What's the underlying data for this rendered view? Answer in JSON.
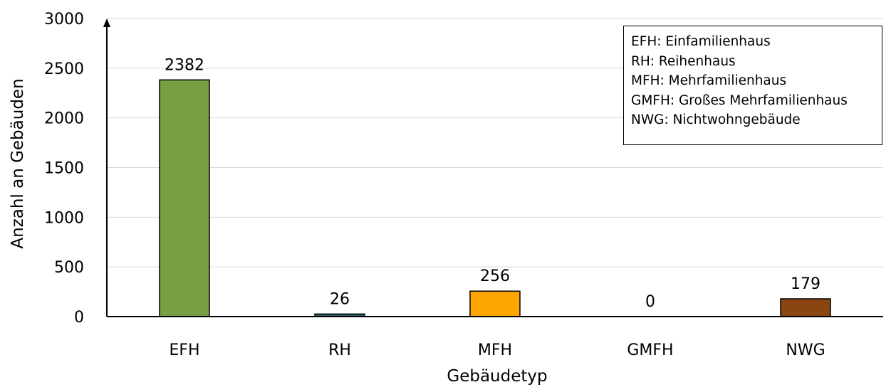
{
  "chart_data": {
    "type": "bar",
    "categories": [
      "EFH",
      "RH",
      "MFH",
      "GMFH",
      "NWG"
    ],
    "values": [
      2382,
      26,
      256,
      0,
      179
    ],
    "data_labels": [
      "2382",
      "26",
      "256",
      "0",
      "179"
    ],
    "colors": [
      "#77a043",
      "#2b5a6a",
      "#ffa500",
      "#7f9e3a",
      "#8b4513"
    ],
    "xlabel": "Gebäudetyp",
    "ylabel": "Anzahl an Gebäuden",
    "ylim": [
      0,
      3000
    ],
    "yticks": [
      "0",
      "500",
      "1000",
      "1500",
      "2000",
      "2500",
      "3000"
    ],
    "grid": "horizontal",
    "legend_position": "top-right",
    "legend_entries": [
      "EFH: Einfamilienhaus",
      "RH: Reihenhaus",
      "MFH: Mehrfamilienhaus",
      "GMFH: Großes Mehrfamilienhaus",
      "NWG: Nichtwohngebäude"
    ]
  }
}
